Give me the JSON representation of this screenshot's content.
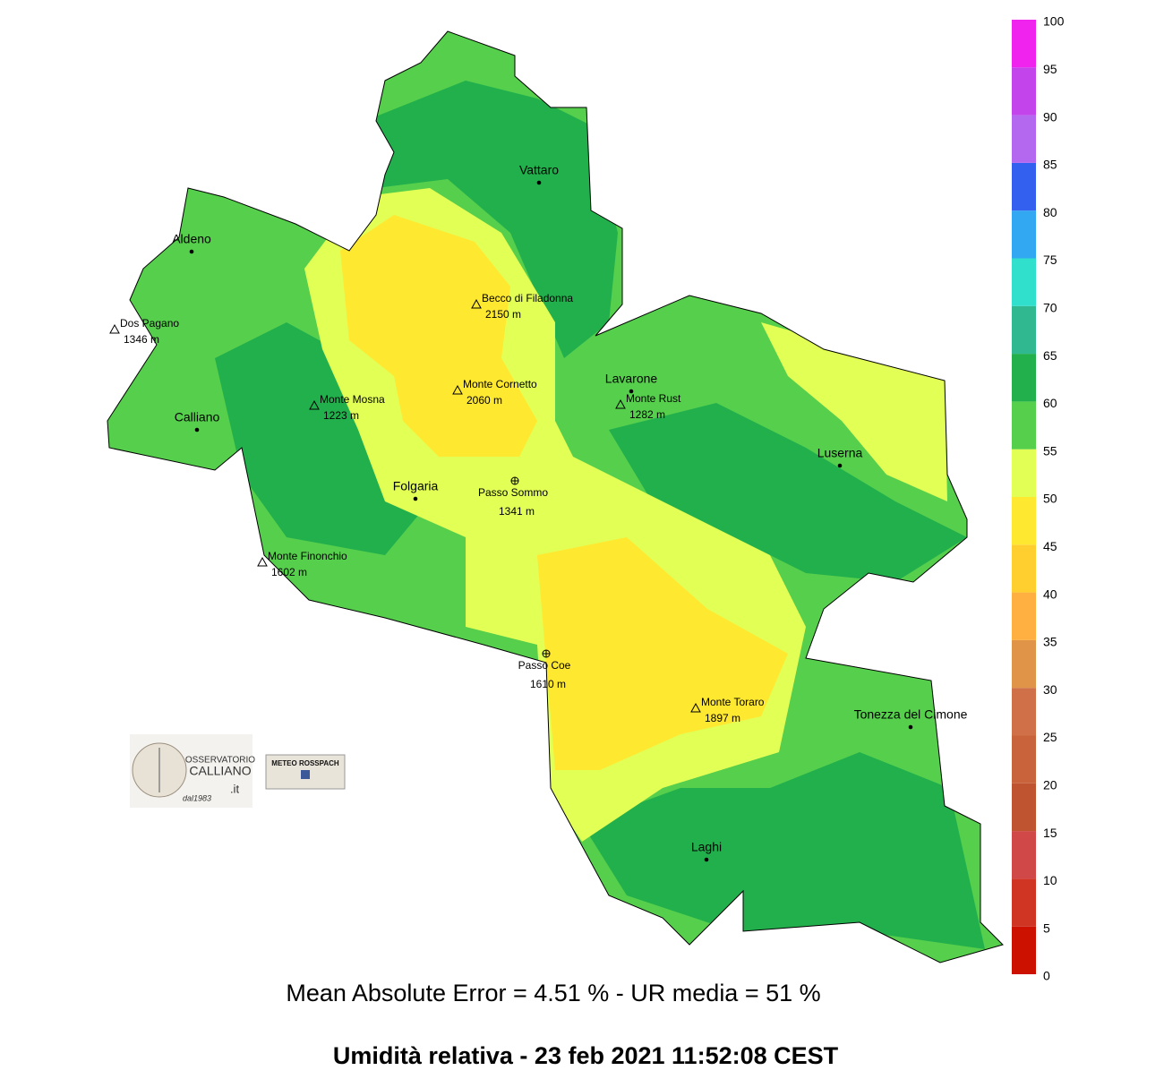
{
  "map": {
    "towns": [
      {
        "name": "Vattaro"
      },
      {
        "name": "Aldeno"
      },
      {
        "name": "Calliano"
      },
      {
        "name": "Folgaria"
      },
      {
        "name": "Lavarone"
      },
      {
        "name": "Luserna"
      },
      {
        "name": "Tonezza del Cimone"
      },
      {
        "name": "Laghi"
      }
    ],
    "peaks": [
      {
        "name": "Becco di Filadonna",
        "elevation": "2150 m"
      },
      {
        "name": "Dos Pagano",
        "elevation": "1346 m"
      },
      {
        "name": "Monte Cornetto",
        "elevation": "2060 m"
      },
      {
        "name": "Monte Mosna",
        "elevation": "1223 m"
      },
      {
        "name": "Monte Rust",
        "elevation": "1282 m"
      },
      {
        "name": "Monte Finonchio",
        "elevation": "1602 m"
      },
      {
        "name": "Monte Toraro",
        "elevation": "1897 m"
      }
    ],
    "passes": [
      {
        "name": "Passo Sommo",
        "elevation": "1341 m"
      },
      {
        "name": "Passo Coe",
        "elevation": "1610 m"
      }
    ]
  },
  "colorbar": {
    "ticks": [
      0,
      5,
      10,
      15,
      20,
      25,
      30,
      35,
      40,
      45,
      50,
      55,
      60,
      65,
      70,
      75,
      80,
      85,
      90,
      95,
      100
    ],
    "colors": [
      "#cc1100",
      "#d03524",
      "#d04848",
      "#bf5530",
      "#c8633c",
      "#d07048",
      "#e09448",
      "#ffb040",
      "#ffcf30",
      "#ffe830",
      "#e2ff55",
      "#55cf4c",
      "#22b04d",
      "#30b890",
      "#30dfcc",
      "#33a8f2",
      "#3460f0",
      "#b468f0",
      "#c444ec",
      "#f022ee"
    ]
  },
  "logos": {
    "observatory": [
      "OSSERVATORIO",
      "CALLIANO",
      ".it",
      "dal1983"
    ],
    "meteo": "METEO ROSSPACH"
  },
  "footer": {
    "error_line": "Mean Absolute Error = 4.51 %  -  UR media = 51 %",
    "title": "Umidità relativa  -  23 feb 2021 11:52:08  CEST"
  }
}
